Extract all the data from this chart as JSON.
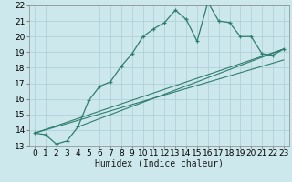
{
  "xlabel": "Humidex (Indice chaleur)",
  "bg_color": "#cce8ec",
  "grid_color": "#aacdd4",
  "line_color": "#2e7d6e",
  "xlim": [
    -0.5,
    23.5
  ],
  "ylim": [
    13,
    22
  ],
  "xticks": [
    0,
    1,
    2,
    3,
    4,
    5,
    6,
    7,
    8,
    9,
    10,
    11,
    12,
    13,
    14,
    15,
    16,
    17,
    18,
    19,
    20,
    21,
    22,
    23
  ],
  "yticks": [
    13,
    14,
    15,
    16,
    17,
    18,
    19,
    20,
    21,
    22
  ],
  "series1_x": [
    0,
    1,
    2,
    3,
    4,
    5,
    6,
    7,
    8,
    9,
    10,
    11,
    12,
    13,
    14,
    15,
    16,
    17,
    18,
    19,
    20,
    21,
    22,
    23
  ],
  "series1_y": [
    13.8,
    13.7,
    13.1,
    13.3,
    14.2,
    15.9,
    16.8,
    17.1,
    18.1,
    18.9,
    20.0,
    20.5,
    20.9,
    21.7,
    21.1,
    19.7,
    22.2,
    21.0,
    20.9,
    20.0,
    20.0,
    18.9,
    18.8,
    19.2
  ],
  "ref_line1_x": [
    0,
    23
  ],
  "ref_line1_y": [
    13.8,
    19.2
  ],
  "ref_line2_x": [
    0,
    23
  ],
  "ref_line2_y": [
    13.8,
    18.5
  ],
  "ref_line3_x": [
    4,
    23
  ],
  "ref_line3_y": [
    14.2,
    19.2
  ],
  "font_size_label": 7,
  "font_size_tick": 6.5
}
